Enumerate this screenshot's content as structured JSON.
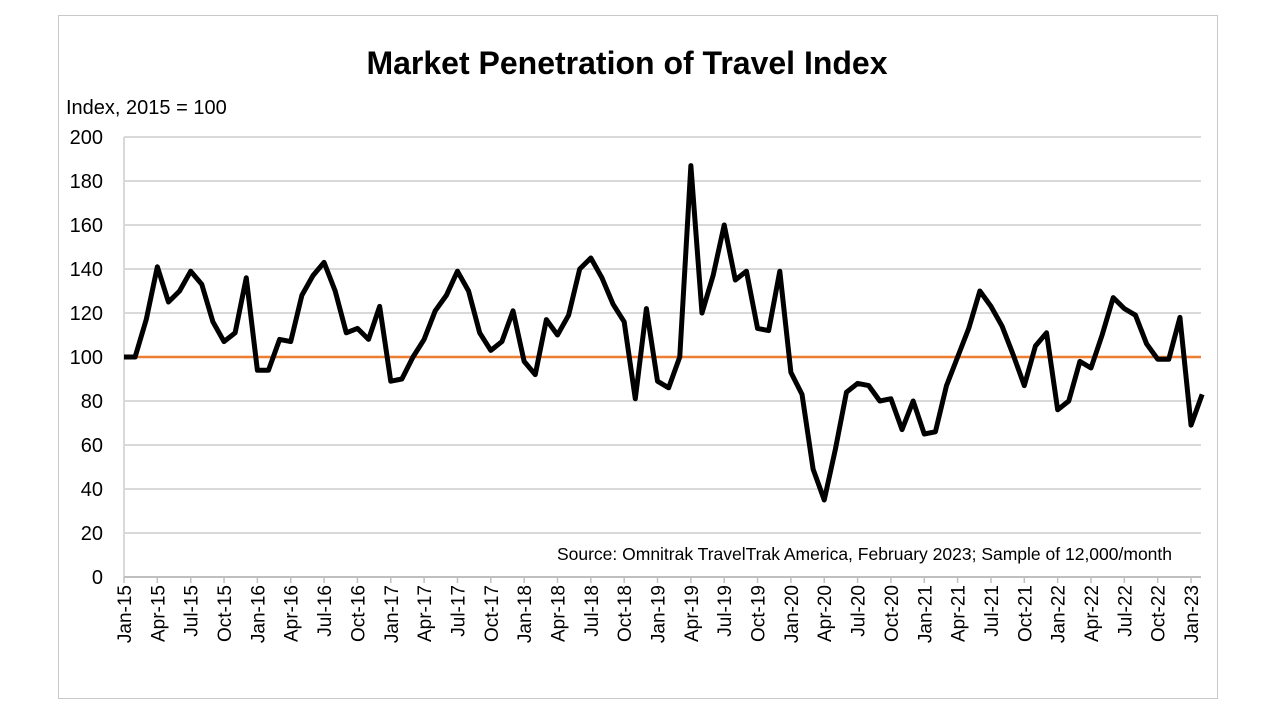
{
  "chart_data": {
    "type": "line",
    "title": "Market Penetration of Travel Index",
    "ylabel": "Index, 2015 = 100",
    "xlabel": "",
    "ylim": [
      0,
      200
    ],
    "yticks": [
      0,
      20,
      40,
      60,
      80,
      100,
      120,
      140,
      160,
      180,
      200
    ],
    "grid": true,
    "annotation": "Source: Omnitrak TravelTrak America, February 2023; Sample of 12,000/month",
    "xtick_labels": [
      "Jan-15",
      "Apr-15",
      "Jul-15",
      "Oct-15",
      "Jan-16",
      "Apr-16",
      "Jul-16",
      "Oct-16",
      "Jan-17",
      "Apr-17",
      "Jul-17",
      "Oct-17",
      "Jan-18",
      "Apr-18",
      "Jul-18",
      "Oct-18",
      "Jan-19",
      "Apr-19",
      "Jul-19",
      "Oct-19",
      "Jan-20",
      "Apr-20",
      "Jul-20",
      "Oct-20",
      "Jan-21",
      "Apr-21",
      "Jul-21",
      "Oct-21",
      "Jan-22",
      "Apr-22",
      "Jul-22",
      "Oct-22",
      "Jan-23"
    ],
    "reference_line": {
      "value": 100,
      "color": "#ED7D31"
    },
    "series": [
      {
        "name": "Market Penetration of Travel Index",
        "color": "#000000",
        "values": [
          100,
          100,
          117,
          141,
          125,
          130,
          139,
          133,
          116,
          107,
          111,
          136,
          94,
          94,
          108,
          107,
          128,
          137,
          143,
          130,
          111,
          113,
          108,
          123,
          89,
          90,
          100,
          108,
          121,
          128,
          139,
          130,
          111,
          103,
          107,
          121,
          98,
          92,
          117,
          110,
          119,
          140,
          145,
          136,
          124,
          116,
          81,
          122,
          89,
          86,
          100,
          187,
          120,
          137,
          160,
          135,
          139,
          113,
          112,
          139,
          93,
          83,
          49,
          35,
          58,
          84,
          88,
          87,
          80,
          81,
          67,
          80,
          65,
          66,
          87,
          100,
          113,
          130,
          123,
          114,
          101,
          87,
          105,
          111,
          76,
          80,
          98,
          95,
          110,
          127,
          122,
          119,
          106,
          99,
          99,
          118,
          69,
          83
        ]
      }
    ]
  }
}
